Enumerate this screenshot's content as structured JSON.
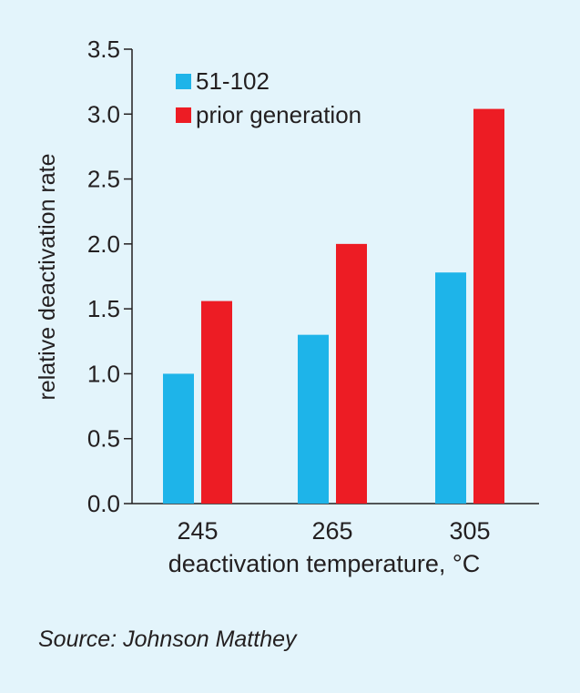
{
  "chart_data": {
    "type": "bar",
    "categories": [
      "245",
      "265",
      "305"
    ],
    "series": [
      {
        "name": "51-102",
        "values": [
          1.0,
          1.3,
          1.78
        ],
        "color": "#1eb4e9"
      },
      {
        "name": "prior generation",
        "values": [
          1.56,
          2.0,
          3.04
        ],
        "color": "#ed1c24"
      }
    ],
    "xlabel": "deactivation temperature, °C",
    "ylabel": "relative deactivation rate",
    "ylim": [
      0,
      3.5
    ],
    "yticks": [
      "0.0",
      "0.5",
      "1.0",
      "1.5",
      "2.0",
      "2.5",
      "3.0",
      "3.5"
    ],
    "grid": false,
    "legend_position": "top-left"
  },
  "source": "Source: Johnson Matthey",
  "colors": {
    "background": "#e3f4fb",
    "axis": "#231f20"
  }
}
